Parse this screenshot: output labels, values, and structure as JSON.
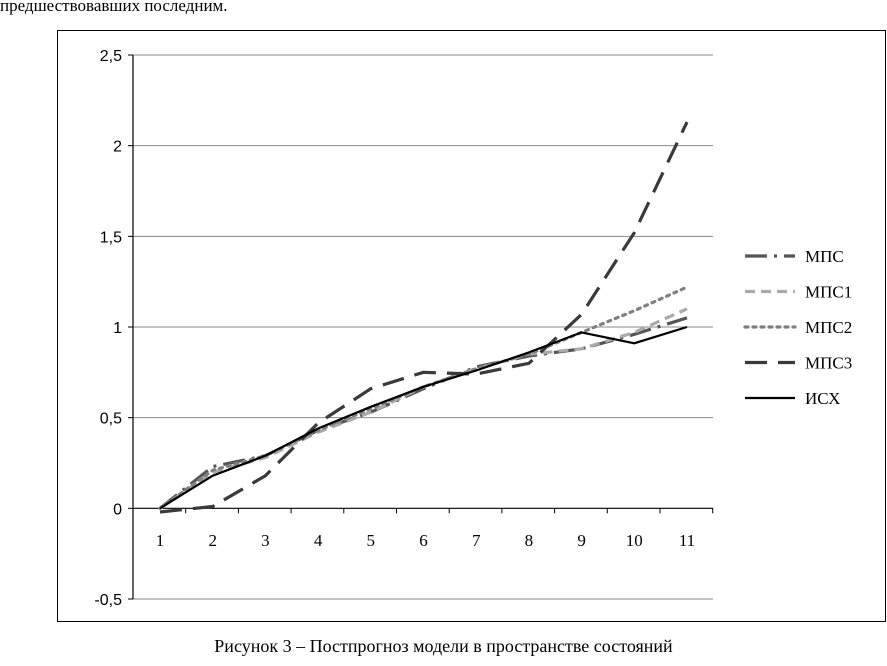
{
  "page": {
    "top_text": "предшествовавших последним.",
    "caption": "Рисунок 3 – Постпрогноз модели в пространстве состояний"
  },
  "chart_data": {
    "type": "line",
    "title": "",
    "xlabel": "",
    "ylabel": "",
    "categories": [
      "1",
      "2",
      "3",
      "4",
      "5",
      "6",
      "7",
      "8",
      "9",
      "10",
      "11"
    ],
    "ylim": [
      -0.5,
      2.5
    ],
    "yticks": [
      -0.5,
      0,
      0.5,
      1,
      1.5,
      2,
      2.5
    ],
    "ytick_labels": [
      "-0,5",
      "0",
      "0,5",
      "1",
      "1,5",
      "2",
      "2,5"
    ],
    "grid": "horizontal",
    "legend_position": "right",
    "series": [
      {
        "name": "МПС",
        "color": "#555555",
        "dash": "dash-dot",
        "values": [
          0.0,
          0.23,
          0.29,
          0.43,
          0.53,
          0.66,
          0.78,
          0.84,
          0.88,
          0.96,
          1.05
        ]
      },
      {
        "name": "МПС1",
        "color": "#aaaaaa",
        "dash": "dash",
        "values": [
          0.0,
          0.2,
          0.28,
          0.42,
          0.53,
          0.67,
          0.77,
          0.85,
          0.88,
          0.97,
          1.1
        ]
      },
      {
        "name": "МПС2",
        "color": "#808080",
        "dash": "dot",
        "values": [
          0.0,
          0.21,
          0.29,
          0.43,
          0.55,
          0.67,
          0.77,
          0.85,
          0.97,
          1.09,
          1.22
        ]
      },
      {
        "name": "МПС3",
        "color": "#3a3a3a",
        "dash": "long-dash",
        "values": [
          -0.02,
          0.01,
          0.18,
          0.47,
          0.66,
          0.75,
          0.74,
          0.8,
          1.07,
          1.52,
          2.13
        ]
      },
      {
        "name": "ИСХ",
        "color": "#000000",
        "dash": "solid",
        "values": [
          0.0,
          0.18,
          0.29,
          0.44,
          0.56,
          0.67,
          0.76,
          0.86,
          0.97,
          0.91,
          1.0
        ]
      }
    ]
  }
}
